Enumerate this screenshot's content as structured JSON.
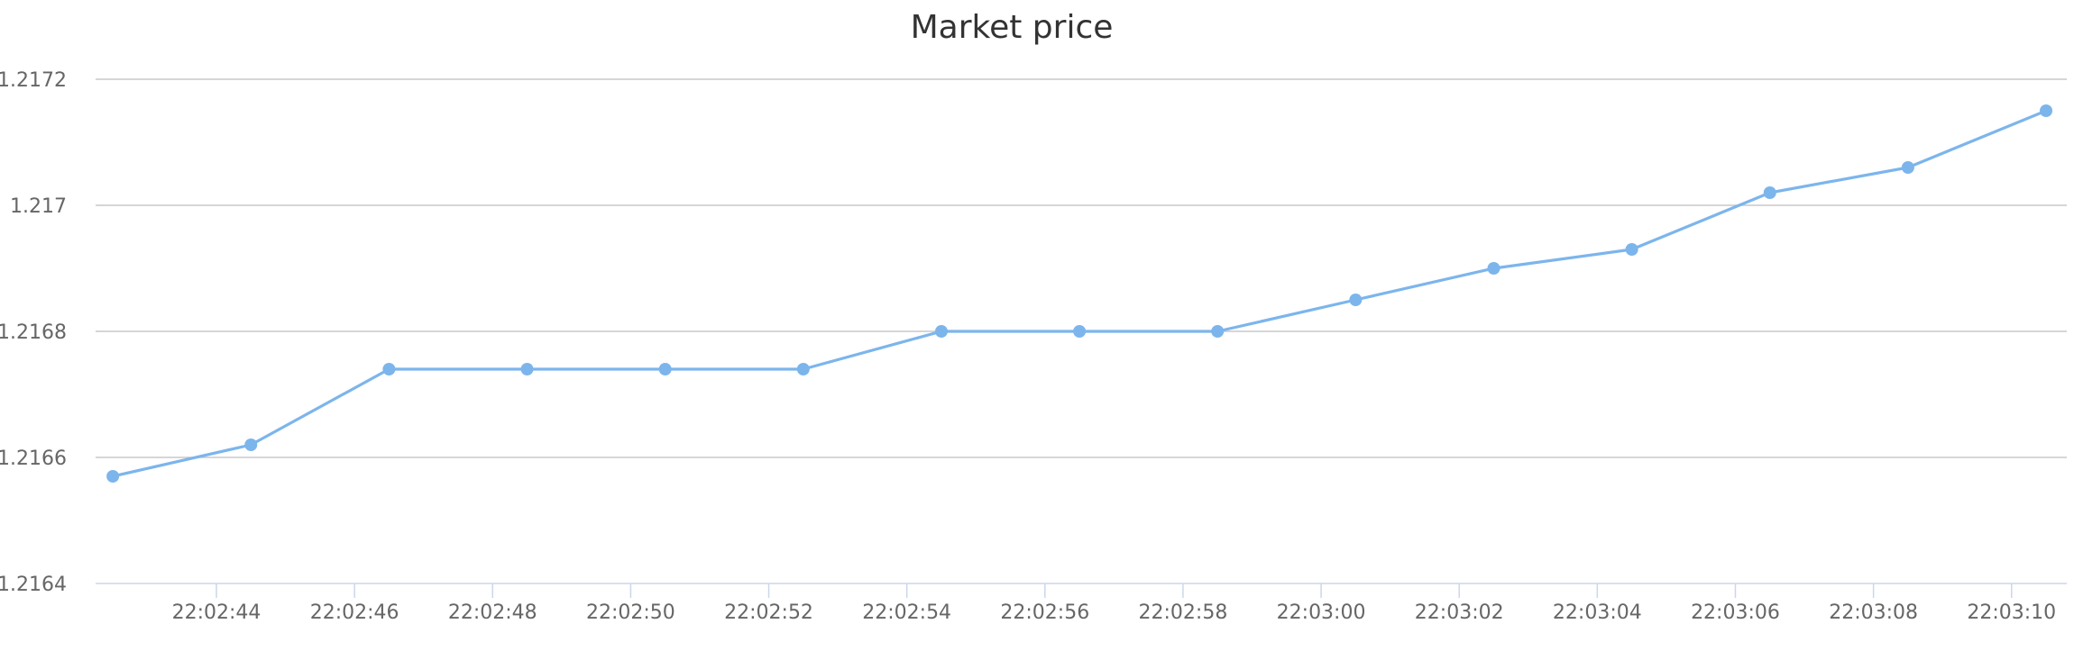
{
  "chart_data": {
    "type": "line",
    "title": "Market price",
    "xlabel": "",
    "ylabel": "",
    "ylim": [
      1.2164,
      1.2172
    ],
    "y_ticks": [
      1.2164,
      1.2166,
      1.2168,
      1.217,
      1.2172
    ],
    "y_tick_labels": [
      "1.2164",
      "1.2166",
      "1.2168",
      "1.217",
      "1.2172"
    ],
    "x_ticks": [
      "22:02:44",
      "22:02:46",
      "22:02:48",
      "22:02:50",
      "22:02:52",
      "22:02:54",
      "22:02:56",
      "22:02:58",
      "22:03:00",
      "22:03:02",
      "22:03:04",
      "22:03:06",
      "22:03:08",
      "22:03:10"
    ],
    "xlim": [
      "22:02:42.25",
      "22:03:10.8"
    ],
    "grid": true,
    "legend": false,
    "series": [
      {
        "color": "#7cb5ec",
        "points": [
          {
            "x": "22:02:42.5",
            "y": 1.21657
          },
          {
            "x": "22:02:44.5",
            "y": 1.21662
          },
          {
            "x": "22:02:46.5",
            "y": 1.21674
          },
          {
            "x": "22:02:48.5",
            "y": 1.21674
          },
          {
            "x": "22:02:50.5",
            "y": 1.21674
          },
          {
            "x": "22:02:52.5",
            "y": 1.21674
          },
          {
            "x": "22:02:54.5",
            "y": 1.2168
          },
          {
            "x": "22:02:56.5",
            "y": 1.2168
          },
          {
            "x": "22:02:58.5",
            "y": 1.2168
          },
          {
            "x": "22:03:00.5",
            "y": 1.21685
          },
          {
            "x": "22:03:02.5",
            "y": 1.2169
          },
          {
            "x": "22:03:04.5",
            "y": 1.21693
          },
          {
            "x": "22:03:06.5",
            "y": 1.21702
          },
          {
            "x": "22:03:08.5",
            "y": 1.21706
          },
          {
            "x": "22:03:10.5",
            "y": 1.21715
          }
        ]
      }
    ]
  }
}
